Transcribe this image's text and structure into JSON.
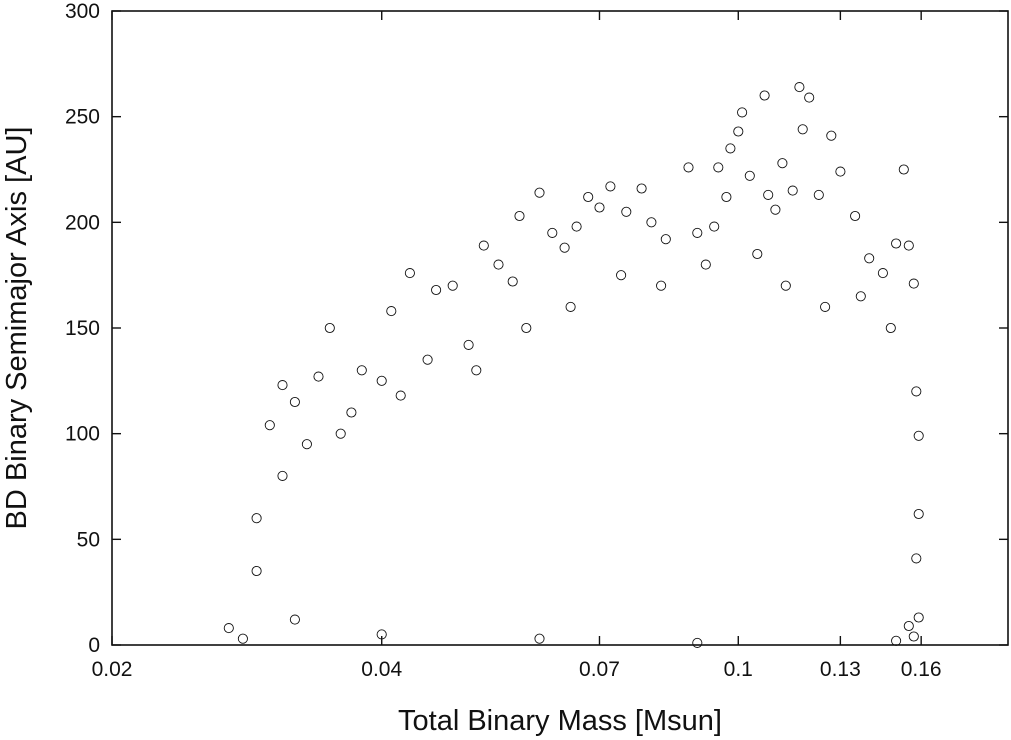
{
  "chart_data": {
    "type": "scatter",
    "title": "",
    "xlabel": "Total Binary Mass [Msun]",
    "ylabel": "BD Binary Semimajor Axis [AU]",
    "x_scale": "log",
    "xlim": [
      0.02,
      0.2
    ],
    "ylim": [
      0,
      300
    ],
    "x_ticks": [
      "0.02",
      "0.04",
      "0.07",
      "0.1",
      "0.13",
      "0.16"
    ],
    "y_ticks": [
      "0",
      "50",
      "100",
      "150",
      "200",
      "250",
      "300"
    ],
    "grid": false,
    "legend": "none",
    "marker": "open-circle",
    "marker_color": "#111111",
    "points": [
      [
        0.028,
        3
      ],
      [
        0.029,
        35
      ],
      [
        0.03,
        104
      ],
      [
        0.031,
        123
      ],
      [
        0.032,
        115
      ],
      [
        0.034,
        127
      ],
      [
        0.035,
        150
      ],
      [
        0.036,
        100
      ],
      [
        0.038,
        130
      ],
      [
        0.04,
        125
      ],
      [
        0.041,
        158
      ],
      [
        0.043,
        176
      ],
      [
        0.046,
        168
      ],
      [
        0.048,
        170
      ],
      [
        0.05,
        142
      ],
      [
        0.052,
        189
      ],
      [
        0.054,
        180
      ],
      [
        0.056,
        172
      ],
      [
        0.057,
        203
      ],
      [
        0.06,
        214
      ],
      [
        0.062,
        195
      ],
      [
        0.064,
        188
      ],
      [
        0.066,
        198
      ],
      [
        0.068,
        212
      ],
      [
        0.07,
        207
      ],
      [
        0.072,
        217
      ],
      [
        0.075,
        205
      ],
      [
        0.078,
        216
      ],
      [
        0.08,
        200
      ],
      [
        0.083,
        192
      ],
      [
        0.088,
        226
      ],
      [
        0.09,
        195
      ],
      [
        0.094,
        198
      ],
      [
        0.095,
        226
      ],
      [
        0.097,
        212
      ],
      [
        0.098,
        235
      ],
      [
        0.1,
        243
      ],
      [
        0.101,
        252
      ],
      [
        0.103,
        222
      ],
      [
        0.107,
        260
      ],
      [
        0.108,
        213
      ],
      [
        0.11,
        206
      ],
      [
        0.112,
        228
      ],
      [
        0.115,
        215
      ],
      [
        0.117,
        264
      ],
      [
        0.118,
        244
      ],
      [
        0.12,
        259
      ],
      [
        0.123,
        213
      ],
      [
        0.127,
        241
      ],
      [
        0.13,
        224
      ],
      [
        0.135,
        203
      ],
      [
        0.14,
        183
      ],
      [
        0.145,
        176
      ],
      [
        0.15,
        190
      ],
      [
        0.153,
        225
      ],
      [
        0.155,
        189
      ],
      [
        0.157,
        171
      ],
      [
        0.158,
        120
      ],
      [
        0.159,
        99
      ],
      [
        0.159,
        62
      ],
      [
        0.158,
        41
      ],
      [
        0.159,
        13
      ],
      [
        0.157,
        4
      ],
      [
        0.155,
        9
      ],
      [
        0.15,
        2
      ],
      [
        0.09,
        1
      ],
      [
        0.06,
        3
      ],
      [
        0.04,
        5
      ],
      [
        0.032,
        12
      ],
      [
        0.027,
        8
      ],
      [
        0.029,
        60
      ],
      [
        0.031,
        80
      ],
      [
        0.033,
        95
      ],
      [
        0.037,
        110
      ],
      [
        0.042,
        118
      ],
      [
        0.045,
        135
      ],
      [
        0.051,
        130
      ],
      [
        0.058,
        150
      ],
      [
        0.065,
        160
      ],
      [
        0.074,
        175
      ],
      [
        0.082,
        170
      ],
      [
        0.092,
        180
      ],
      [
        0.105,
        185
      ],
      [
        0.113,
        170
      ],
      [
        0.125,
        160
      ],
      [
        0.137,
        165
      ],
      [
        0.148,
        150
      ]
    ]
  }
}
